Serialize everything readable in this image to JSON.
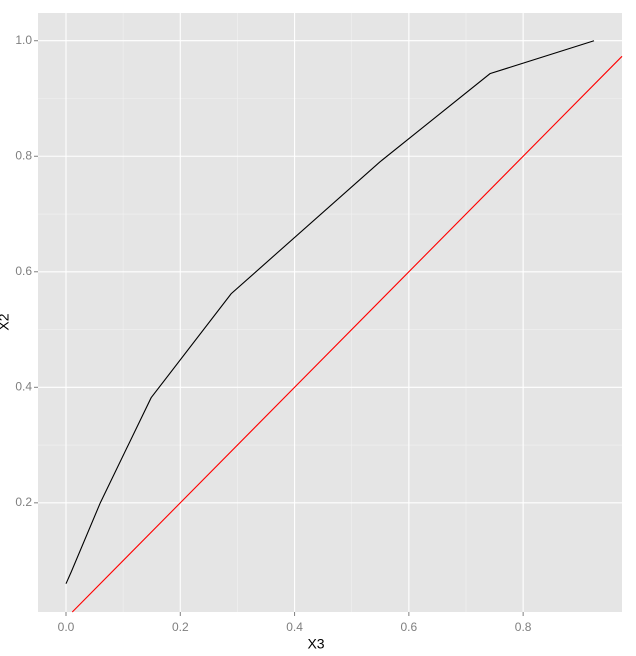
{
  "chart_data": {
    "type": "line",
    "x_label": "X3",
    "y_label": "X2",
    "series": [
      {
        "color": "#000000",
        "x": [
          0.0,
          0.009,
          0.06,
          0.149,
          0.289,
          0.549,
          0.742,
          0.924
        ],
        "values": [
          0.06,
          0.08,
          0.2,
          0.382,
          0.562,
          0.79,
          0.943,
          1.0
        ]
      },
      {
        "color": "#ff0000",
        "x": [
          0.011,
          0.973
        ],
        "values": [
          0.011,
          0.973
        ]
      }
    ],
    "xlim": [
      -0.049,
      0.973
    ],
    "ylim": [
      0.011,
      1.048
    ],
    "xticks": [
      {
        "value": 0,
        "label": "0.0"
      },
      0.2,
      0.4,
      0.6,
      0.8
    ],
    "yticks": [
      0.2,
      0.4,
      0.6,
      0.8,
      {
        "value": 1,
        "label": "1.0"
      }
    ],
    "grid": true
  }
}
